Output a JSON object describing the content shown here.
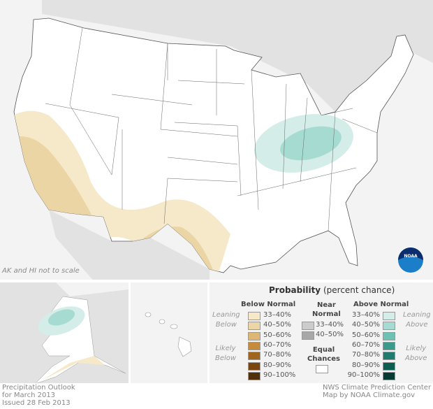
{
  "map": {
    "note": "AK and HI not to scale",
    "logo": "NOAA"
  },
  "legend": {
    "title_bold": "Probability",
    "title_rest": "(percent chance)",
    "below": {
      "header": "Below Normal",
      "leaning": [
        "Leaning",
        "Below"
      ],
      "likely": [
        "Likely",
        "Below"
      ],
      "items": [
        {
          "label": "33–40%",
          "color": "#f7e9c8"
        },
        {
          "label": "40–50%",
          "color": "#edd6a6"
        },
        {
          "label": "50–60%",
          "color": "#ddb776"
        },
        {
          "label": "60–70%",
          "color": "#c58a3c"
        },
        {
          "label": "70–80%",
          "color": "#a0641e"
        },
        {
          "label": "80–90%",
          "color": "#7a4510"
        },
        {
          "label": "90–100%",
          "color": "#52300a"
        }
      ]
    },
    "near": {
      "header": [
        "Near",
        "Normal"
      ],
      "items": [
        {
          "label": "33–40%",
          "color": "#cccccc"
        },
        {
          "label": "40–50%",
          "color": "#a8a8a8"
        }
      ]
    },
    "equal": {
      "label": [
        "Equal",
        "Chances"
      ],
      "color": "#ffffff"
    },
    "above": {
      "header": "Above Normal",
      "leaning": [
        "Leaning",
        "Above"
      ],
      "likely": [
        "Likely",
        "Above"
      ],
      "items": [
        {
          "label": "33–40%",
          "color": "#d4ede8"
        },
        {
          "label": "40–50%",
          "color": "#a6dbd1"
        },
        {
          "label": "50–60%",
          "color": "#6cc2b3"
        },
        {
          "label": "60–70%",
          "color": "#3a9a8c"
        },
        {
          "label": "70–80%",
          "color": "#1f7b6e"
        },
        {
          "label": "80–90%",
          "color": "#0d5e52"
        },
        {
          "label": "90–100%",
          "color": "#053b33"
        }
      ]
    }
  },
  "footer": {
    "left": [
      "Precipitation Outlook",
      "for March 2013",
      "Issued 28 Feb 2013"
    ],
    "right": [
      "NWS Climate Prediction Center",
      "Map by NOAA Climate.gov"
    ]
  }
}
